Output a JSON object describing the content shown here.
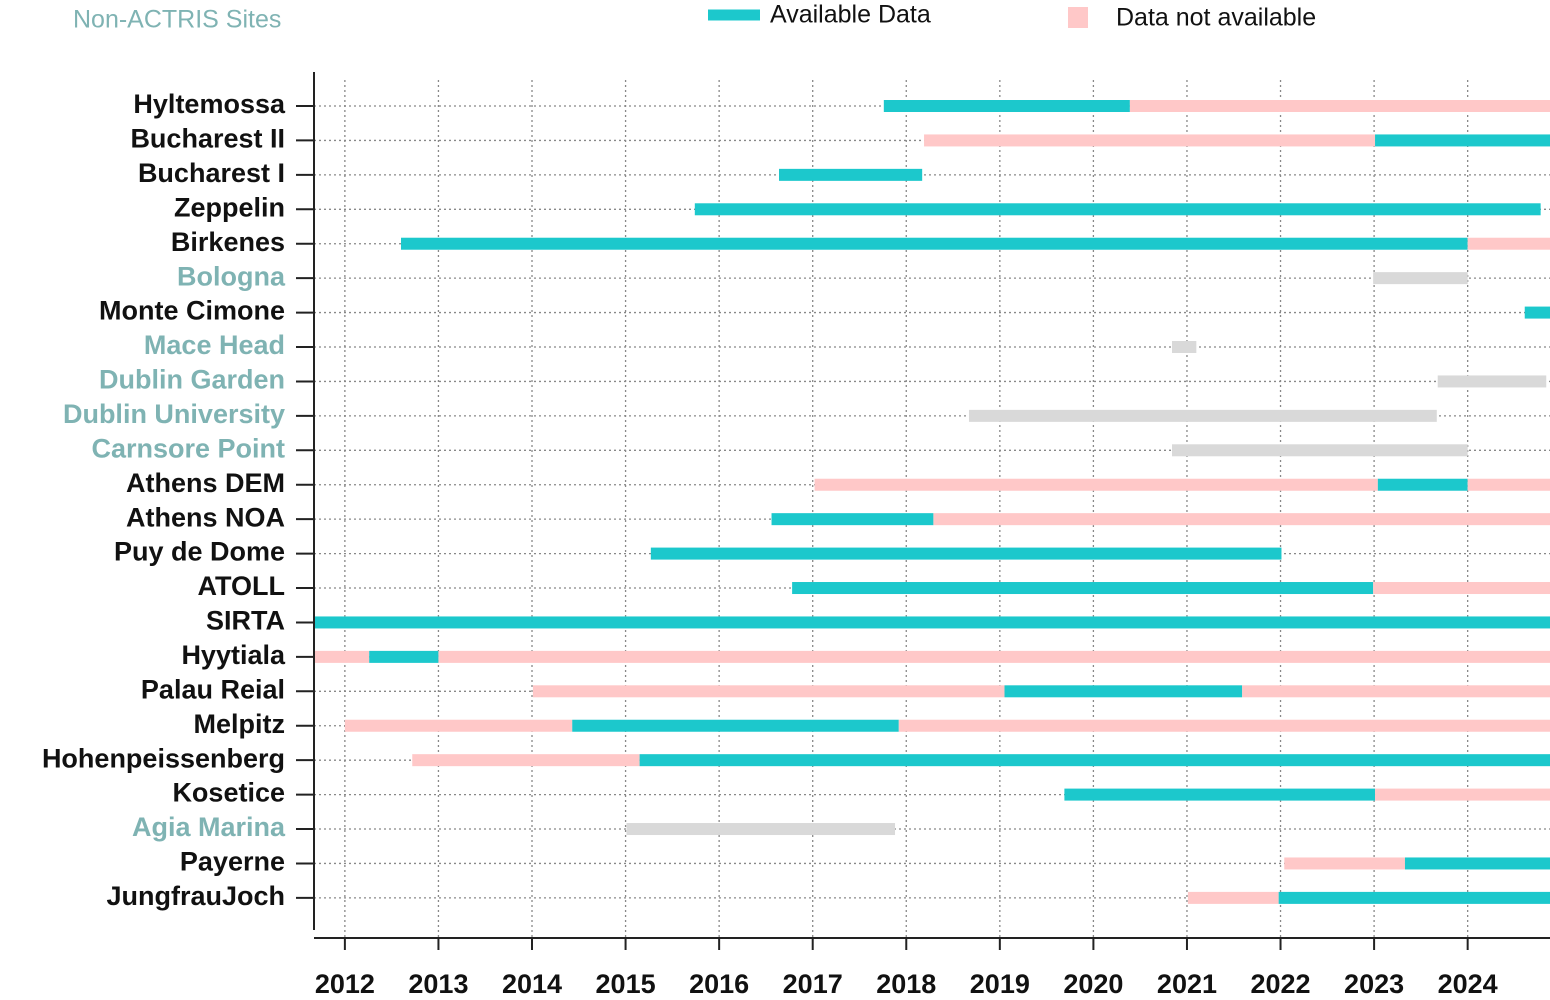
{
  "chart_data": {
    "type": "timeline",
    "note": "Non-ACTRIS Sites",
    "label_color": "#111111",
    "non_actris_label_color": "#7fb3b3",
    "non_actris_bar_color": "#d9d9d9",
    "series": [
      {
        "name": "Available Data",
        "color": "#1cc8cc"
      },
      {
        "name": "Data not available",
        "color": "#ffc8c8"
      }
    ],
    "xlim": [
      2011.67,
      2024.88
    ],
    "xticks": [
      2012,
      2013,
      2014,
      2015,
      2016,
      2017,
      2018,
      2019,
      2020,
      2021,
      2022,
      2023,
      2024
    ],
    "grid": true,
    "rows": [
      {
        "name": "Hyltemossa",
        "actris": true,
        "segments": [
          {
            "start": 2017.76,
            "end": 2020.39,
            "s": 0
          },
          {
            "start": 2020.39,
            "end": 2024.88,
            "s": 1
          }
        ]
      },
      {
        "name": "Bucharest II",
        "actris": true,
        "segments": [
          {
            "start": 2018.19,
            "end": 2023.01,
            "s": 1
          },
          {
            "start": 2023.01,
            "end": 2024.88,
            "s": 0
          }
        ]
      },
      {
        "name": "Bucharest I",
        "actris": true,
        "segments": [
          {
            "start": 2016.64,
            "end": 2018.17,
            "s": 0
          }
        ]
      },
      {
        "name": "Zeppelin",
        "actris": true,
        "segments": [
          {
            "start": 2015.74,
            "end": 2024.78,
            "s": 0
          }
        ]
      },
      {
        "name": "Birkenes",
        "actris": true,
        "segments": [
          {
            "start": 2012.6,
            "end": 2024.0,
            "s": 0
          },
          {
            "start": 2024.0,
            "end": 2024.88,
            "s": 1
          }
        ]
      },
      {
        "name": "Bologna",
        "actris": false,
        "segments": [
          {
            "start": 2022.99,
            "end": 2024.0
          }
        ]
      },
      {
        "name": "Monte Cimone",
        "actris": true,
        "segments": [
          {
            "start": 2024.61,
            "end": 2024.88,
            "s": 0
          }
        ]
      },
      {
        "name": "Mace Head",
        "actris": false,
        "segments": [
          {
            "start": 2020.84,
            "end": 2021.1
          }
        ]
      },
      {
        "name": "Dublin Garden",
        "actris": false,
        "segments": [
          {
            "start": 2023.68,
            "end": 2024.84
          }
        ]
      },
      {
        "name": "Dublin University",
        "actris": false,
        "segments": [
          {
            "start": 2018.67,
            "end": 2023.67
          }
        ]
      },
      {
        "name": "Carnsore Point",
        "actris": false,
        "segments": [
          {
            "start": 2020.84,
            "end": 2024.0
          }
        ]
      },
      {
        "name": "Athens DEM",
        "actris": true,
        "segments": [
          {
            "start": 2017.02,
            "end": 2023.04,
            "s": 1
          },
          {
            "start": 2023.04,
            "end": 2024.0,
            "s": 0
          },
          {
            "start": 2024.0,
            "end": 2024.88,
            "s": 1
          }
        ]
      },
      {
        "name": "Athens NOA",
        "actris": true,
        "segments": [
          {
            "start": 2016.56,
            "end": 2018.29,
            "s": 0
          },
          {
            "start": 2018.29,
            "end": 2024.88,
            "s": 1
          }
        ]
      },
      {
        "name": "Puy de Dome",
        "actris": true,
        "segments": [
          {
            "start": 2015.27,
            "end": 2022.01,
            "s": 0
          }
        ]
      },
      {
        "name": "ATOLL",
        "actris": true,
        "segments": [
          {
            "start": 2016.78,
            "end": 2022.99,
            "s": 0
          },
          {
            "start": 2022.99,
            "end": 2024.88,
            "s": 1
          }
        ]
      },
      {
        "name": "SIRTA",
        "actris": true,
        "segments": [
          {
            "start": 2011.67,
            "end": 2024.88,
            "s": 0
          }
        ]
      },
      {
        "name": "Hyytiala",
        "actris": true,
        "segments": [
          {
            "start": 2011.67,
            "end": 2012.26,
            "s": 1
          },
          {
            "start": 2012.26,
            "end": 2013.0,
            "s": 0
          },
          {
            "start": 2013.0,
            "end": 2024.88,
            "s": 1
          }
        ]
      },
      {
        "name": "Palau Reial",
        "actris": true,
        "segments": [
          {
            "start": 2014.01,
            "end": 2019.05,
            "s": 1
          },
          {
            "start": 2019.05,
            "end": 2021.59,
            "s": 0
          },
          {
            "start": 2021.59,
            "end": 2024.88,
            "s": 1
          }
        ]
      },
      {
        "name": "Melpitz",
        "actris": true,
        "segments": [
          {
            "start": 2012.0,
            "end": 2014.43,
            "s": 1
          },
          {
            "start": 2014.43,
            "end": 2017.92,
            "s": 0
          },
          {
            "start": 2017.92,
            "end": 2024.88,
            "s": 1
          }
        ]
      },
      {
        "name": "Hohenpeissenberg",
        "actris": true,
        "segments": [
          {
            "start": 2012.72,
            "end": 2015.15,
            "s": 1
          },
          {
            "start": 2015.15,
            "end": 2024.88,
            "s": 0
          }
        ]
      },
      {
        "name": "Kosetice",
        "actris": true,
        "segments": [
          {
            "start": 2019.69,
            "end": 2023.01,
            "s": 0
          },
          {
            "start": 2023.01,
            "end": 2024.88,
            "s": 1
          }
        ]
      },
      {
        "name": "Agia Marina",
        "actris": false,
        "segments": [
          {
            "start": 2015.01,
            "end": 2017.88
          }
        ]
      },
      {
        "name": "Payerne",
        "actris": true,
        "segments": [
          {
            "start": 2022.04,
            "end": 2023.33,
            "s": 1
          },
          {
            "start": 2023.33,
            "end": 2024.88,
            "s": 0
          }
        ]
      },
      {
        "name": "JungfrauJoch",
        "actris": true,
        "segments": [
          {
            "start": 2021.01,
            "end": 2021.98,
            "s": 1
          },
          {
            "start": 2021.98,
            "end": 2024.88,
            "s": 0
          }
        ]
      }
    ]
  }
}
